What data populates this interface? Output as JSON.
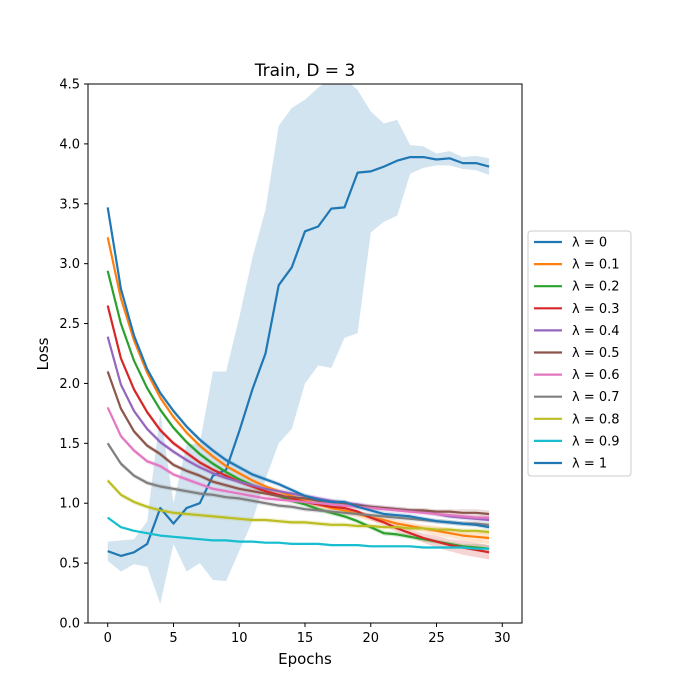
{
  "chart_data": {
    "type": "line",
    "title": "Train, D = 3",
    "xlabel": "Epochs",
    "ylabel": "Loss",
    "xlim": [
      -1.5,
      31.5
    ],
    "ylim": [
      0.0,
      4.5
    ],
    "xticks": [
      0,
      5,
      10,
      15,
      20,
      25,
      30
    ],
    "yticks": [
      0.0,
      0.5,
      1.0,
      1.5,
      2.0,
      2.5,
      3.0,
      3.5,
      4.0,
      4.5
    ],
    "legend_position": "right-center-outside",
    "x": [
      0,
      1,
      2,
      3,
      4,
      5,
      6,
      7,
      8,
      9,
      10,
      11,
      12,
      13,
      14,
      15,
      16,
      17,
      18,
      19,
      20,
      21,
      22,
      23,
      24,
      25,
      26,
      27,
      28,
      29
    ],
    "series": [
      {
        "name": "λ = 0",
        "color": "#1f77b4",
        "values": [
          0.6,
          0.56,
          0.59,
          0.66,
          0.96,
          0.83,
          0.96,
          1.0,
          1.23,
          1.28,
          1.6,
          1.95,
          2.25,
          2.82,
          2.97,
          3.27,
          3.31,
          3.46,
          3.47,
          3.76,
          3.77,
          3.81,
          3.86,
          3.89,
          3.89,
          3.87,
          3.88,
          3.84,
          3.84,
          3.81
        ],
        "band_lower": [
          0.52,
          0.43,
          0.49,
          0.47,
          0.16,
          0.66,
          0.43,
          0.5,
          0.36,
          0.35,
          0.6,
          0.85,
          1.2,
          1.5,
          1.62,
          2.0,
          2.15,
          2.13,
          2.38,
          2.42,
          3.26,
          3.35,
          3.4,
          3.75,
          3.8,
          3.82,
          3.82,
          3.79,
          3.78,
          3.74
        ],
        "band_upper": [
          0.68,
          0.69,
          0.7,
          0.85,
          1.76,
          1.0,
          1.49,
          1.5,
          2.1,
          2.1,
          2.55,
          3.05,
          3.45,
          4.15,
          4.3,
          4.37,
          4.47,
          4.55,
          4.55,
          4.45,
          4.27,
          4.17,
          4.2,
          3.99,
          3.98,
          3.92,
          3.94,
          3.89,
          3.9,
          3.88
        ]
      },
      {
        "name": "λ = 0.1",
        "color": "#ff7f0e",
        "values": [
          3.22,
          2.71,
          2.36,
          2.09,
          1.88,
          1.72,
          1.59,
          1.48,
          1.39,
          1.31,
          1.25,
          1.19,
          1.14,
          1.1,
          1.06,
          1.02,
          0.99,
          0.96,
          0.94,
          0.91,
          0.88,
          0.86,
          0.83,
          0.81,
          0.79,
          0.77,
          0.75,
          0.73,
          0.72,
          0.71
        ],
        "band_lower": [
          3.2,
          2.69,
          2.34,
          2.07,
          1.86,
          1.7,
          1.57,
          1.46,
          1.37,
          1.29,
          1.23,
          1.17,
          1.12,
          1.08,
          1.04,
          1.0,
          0.96,
          0.93,
          0.91,
          0.88,
          0.85,
          0.83,
          0.8,
          0.78,
          0.76,
          0.73,
          0.71,
          0.69,
          0.67,
          0.66
        ],
        "band_upper": [
          3.24,
          2.73,
          2.38,
          2.11,
          1.9,
          1.74,
          1.61,
          1.5,
          1.41,
          1.33,
          1.27,
          1.21,
          1.16,
          1.12,
          1.08,
          1.04,
          1.02,
          0.99,
          0.97,
          0.94,
          0.91,
          0.89,
          0.86,
          0.84,
          0.82,
          0.81,
          0.79,
          0.77,
          0.77,
          0.76
        ]
      },
      {
        "name": "λ = 0.2",
        "color": "#2ca02c",
        "values": [
          2.94,
          2.5,
          2.19,
          1.96,
          1.78,
          1.63,
          1.51,
          1.41,
          1.33,
          1.26,
          1.2,
          1.15,
          1.1,
          1.06,
          1.02,
          0.99,
          0.95,
          0.92,
          0.89,
          0.85,
          0.8,
          0.75,
          0.74,
          0.72,
          0.7,
          0.68,
          0.66,
          0.64,
          0.63,
          0.62
        ],
        "band_lower": [
          2.92,
          2.48,
          2.17,
          1.94,
          1.76,
          1.61,
          1.49,
          1.39,
          1.31,
          1.24,
          1.18,
          1.13,
          1.08,
          1.04,
          1.0,
          0.97,
          0.93,
          0.9,
          0.87,
          0.83,
          0.78,
          0.73,
          0.72,
          0.7,
          0.68,
          0.66,
          0.64,
          0.62,
          0.6,
          0.59
        ],
        "band_upper": [
          2.96,
          2.52,
          2.21,
          1.98,
          1.8,
          1.65,
          1.53,
          1.43,
          1.35,
          1.28,
          1.22,
          1.17,
          1.12,
          1.08,
          1.04,
          1.01,
          0.97,
          0.94,
          0.91,
          0.87,
          0.82,
          0.77,
          0.76,
          0.74,
          0.72,
          0.7,
          0.68,
          0.66,
          0.66,
          0.65
        ]
      },
      {
        "name": "λ = 0.3",
        "color": "#d62728",
        "values": [
          2.65,
          2.21,
          1.95,
          1.76,
          1.61,
          1.5,
          1.42,
          1.34,
          1.28,
          1.23,
          1.18,
          1.14,
          1.1,
          1.07,
          1.04,
          1.01,
          0.99,
          0.97,
          0.96,
          0.93,
          0.88,
          0.84,
          0.79,
          0.75,
          0.71,
          0.68,
          0.65,
          0.63,
          0.61,
          0.59
        ],
        "band_lower": [
          2.63,
          2.19,
          1.93,
          1.74,
          1.59,
          1.48,
          1.4,
          1.32,
          1.26,
          1.21,
          1.16,
          1.12,
          1.08,
          1.05,
          1.02,
          0.99,
          0.97,
          0.95,
          0.94,
          0.91,
          0.86,
          0.81,
          0.76,
          0.72,
          0.67,
          0.63,
          0.6,
          0.57,
          0.55,
          0.53
        ],
        "band_upper": [
          2.67,
          2.23,
          1.97,
          1.78,
          1.63,
          1.52,
          1.44,
          1.36,
          1.3,
          1.25,
          1.2,
          1.16,
          1.12,
          1.09,
          1.06,
          1.03,
          1.01,
          0.99,
          0.98,
          0.95,
          0.9,
          0.87,
          0.82,
          0.78,
          0.75,
          0.73,
          0.7,
          0.69,
          0.67,
          0.65
        ]
      },
      {
        "name": "λ = 0.4",
        "color": "#9467bd",
        "values": [
          2.39,
          1.99,
          1.77,
          1.62,
          1.51,
          1.43,
          1.36,
          1.3,
          1.25,
          1.21,
          1.18,
          1.15,
          1.12,
          1.1,
          1.08,
          1.06,
          1.04,
          1.02,
          1.0,
          0.99,
          0.97,
          0.96,
          0.95,
          0.94,
          0.93,
          0.91,
          0.89,
          0.88,
          0.87,
          0.86
        ],
        "band_lower": [
          2.37,
          1.97,
          1.75,
          1.6,
          1.49,
          1.41,
          1.34,
          1.28,
          1.23,
          1.19,
          1.16,
          1.13,
          1.1,
          1.08,
          1.06,
          1.04,
          1.02,
          1.0,
          0.98,
          0.97,
          0.95,
          0.94,
          0.93,
          0.92,
          0.91,
          0.89,
          0.87,
          0.86,
          0.85,
          0.84
        ],
        "band_upper": [
          2.41,
          2.01,
          1.79,
          1.64,
          1.53,
          1.45,
          1.38,
          1.32,
          1.27,
          1.23,
          1.2,
          1.17,
          1.14,
          1.12,
          1.1,
          1.08,
          1.06,
          1.04,
          1.02,
          1.01,
          0.99,
          0.98,
          0.97,
          0.96,
          0.95,
          0.93,
          0.91,
          0.9,
          0.89,
          0.88
        ]
      },
      {
        "name": "λ = 0.5",
        "color": "#8c564b",
        "values": [
          2.1,
          1.79,
          1.6,
          1.48,
          1.41,
          1.32,
          1.27,
          1.23,
          1.18,
          1.15,
          1.12,
          1.1,
          1.08,
          1.06,
          1.05,
          1.04,
          1.02,
          1.01,
          1.0,
          0.98,
          0.97,
          0.96,
          0.95,
          0.94,
          0.94,
          0.93,
          0.93,
          0.92,
          0.92,
          0.91
        ],
        "band_lower": [
          2.08,
          1.77,
          1.58,
          1.46,
          1.39,
          1.3,
          1.25,
          1.21,
          1.16,
          1.13,
          1.1,
          1.08,
          1.06,
          1.04,
          1.03,
          1.02,
          1.0,
          0.99,
          0.98,
          0.96,
          0.95,
          0.94,
          0.93,
          0.92,
          0.92,
          0.91,
          0.91,
          0.89,
          0.89,
          0.88
        ],
        "band_upper": [
          2.12,
          1.81,
          1.62,
          1.5,
          1.43,
          1.34,
          1.29,
          1.25,
          1.2,
          1.17,
          1.14,
          1.12,
          1.1,
          1.08,
          1.07,
          1.06,
          1.04,
          1.03,
          1.02,
          1.0,
          0.99,
          0.98,
          0.97,
          0.96,
          0.96,
          0.95,
          0.95,
          0.95,
          0.95,
          0.94
        ]
      },
      {
        "name": "λ = 0.6",
        "color": "#e377c2",
        "values": [
          1.8,
          1.56,
          1.44,
          1.35,
          1.31,
          1.24,
          1.2,
          1.16,
          1.12,
          1.1,
          1.08,
          1.06,
          1.04,
          1.03,
          1.02,
          1.01,
          1.0,
          0.99,
          0.98,
          0.97,
          0.96,
          0.95,
          0.94,
          0.93,
          0.92,
          0.91,
          0.9,
          0.89,
          0.88,
          0.88
        ],
        "band_lower": [
          1.78,
          1.54,
          1.42,
          1.33,
          1.29,
          1.22,
          1.18,
          1.14,
          1.1,
          1.08,
          1.06,
          1.04,
          1.02,
          1.01,
          1.0,
          0.99,
          0.98,
          0.97,
          0.96,
          0.95,
          0.94,
          0.93,
          0.92,
          0.91,
          0.9,
          0.89,
          0.88,
          0.87,
          0.86,
          0.86
        ],
        "band_upper": [
          1.82,
          1.58,
          1.46,
          1.37,
          1.33,
          1.26,
          1.22,
          1.18,
          1.14,
          1.12,
          1.1,
          1.08,
          1.06,
          1.05,
          1.04,
          1.03,
          1.02,
          1.01,
          1.0,
          0.99,
          0.98,
          0.97,
          0.96,
          0.95,
          0.94,
          0.93,
          0.92,
          0.91,
          0.9,
          0.9
        ]
      },
      {
        "name": "λ = 0.7",
        "color": "#7f7f7f",
        "values": [
          1.5,
          1.33,
          1.23,
          1.17,
          1.14,
          1.12,
          1.1,
          1.08,
          1.07,
          1.05,
          1.04,
          1.02,
          1.0,
          0.98,
          0.97,
          0.95,
          0.94,
          0.93,
          0.92,
          0.91,
          0.9,
          0.89,
          0.88,
          0.87,
          0.86,
          0.85,
          0.84,
          0.83,
          0.83,
          0.82
        ],
        "band_lower": [
          1.48,
          1.31,
          1.21,
          1.15,
          1.12,
          1.1,
          1.08,
          1.06,
          1.05,
          1.03,
          1.02,
          1.0,
          0.98,
          0.96,
          0.95,
          0.93,
          0.92,
          0.91,
          0.9,
          0.89,
          0.88,
          0.87,
          0.86,
          0.85,
          0.84,
          0.83,
          0.82,
          0.81,
          0.81,
          0.8
        ],
        "band_upper": [
          1.52,
          1.35,
          1.25,
          1.19,
          1.16,
          1.14,
          1.12,
          1.1,
          1.09,
          1.07,
          1.06,
          1.04,
          1.02,
          1.0,
          0.99,
          0.97,
          0.96,
          0.95,
          0.94,
          0.93,
          0.92,
          0.91,
          0.9,
          0.89,
          0.88,
          0.87,
          0.86,
          0.85,
          0.85,
          0.84
        ]
      },
      {
        "name": "λ = 0.8",
        "color": "#bcbd22",
        "values": [
          1.19,
          1.07,
          1.01,
          0.97,
          0.94,
          0.92,
          0.91,
          0.9,
          0.89,
          0.88,
          0.87,
          0.86,
          0.86,
          0.85,
          0.84,
          0.84,
          0.83,
          0.82,
          0.82,
          0.81,
          0.81,
          0.8,
          0.8,
          0.79,
          0.79,
          0.78,
          0.78,
          0.77,
          0.77,
          0.76
        ],
        "band_lower": [
          1.17,
          1.05,
          0.99,
          0.95,
          0.92,
          0.9,
          0.89,
          0.88,
          0.87,
          0.86,
          0.85,
          0.84,
          0.84,
          0.83,
          0.82,
          0.82,
          0.81,
          0.8,
          0.8,
          0.79,
          0.79,
          0.78,
          0.78,
          0.77,
          0.77,
          0.76,
          0.76,
          0.75,
          0.75,
          0.74
        ],
        "band_upper": [
          1.21,
          1.09,
          1.03,
          0.99,
          0.96,
          0.94,
          0.93,
          0.92,
          0.91,
          0.9,
          0.89,
          0.88,
          0.88,
          0.87,
          0.86,
          0.86,
          0.85,
          0.84,
          0.84,
          0.83,
          0.83,
          0.82,
          0.82,
          0.81,
          0.81,
          0.8,
          0.8,
          0.79,
          0.79,
          0.78
        ]
      },
      {
        "name": "λ = 0.9",
        "color": "#17becf",
        "values": [
          0.88,
          0.8,
          0.77,
          0.75,
          0.73,
          0.72,
          0.71,
          0.7,
          0.69,
          0.69,
          0.68,
          0.68,
          0.67,
          0.67,
          0.66,
          0.66,
          0.66,
          0.65,
          0.65,
          0.65,
          0.64,
          0.64,
          0.64,
          0.64,
          0.63,
          0.63,
          0.63,
          0.63,
          0.62,
          0.62
        ],
        "band_lower": [
          0.87,
          0.79,
          0.76,
          0.74,
          0.72,
          0.71,
          0.7,
          0.69,
          0.68,
          0.68,
          0.67,
          0.67,
          0.66,
          0.66,
          0.65,
          0.65,
          0.65,
          0.64,
          0.64,
          0.64,
          0.63,
          0.63,
          0.63,
          0.63,
          0.62,
          0.62,
          0.62,
          0.62,
          0.61,
          0.61
        ],
        "band_upper": [
          0.89,
          0.81,
          0.78,
          0.76,
          0.74,
          0.73,
          0.72,
          0.71,
          0.7,
          0.7,
          0.69,
          0.69,
          0.68,
          0.68,
          0.67,
          0.67,
          0.67,
          0.66,
          0.66,
          0.66,
          0.65,
          0.65,
          0.65,
          0.65,
          0.64,
          0.64,
          0.64,
          0.64,
          0.63,
          0.63
        ]
      },
      {
        "name": "λ = 1",
        "color": "#1f77b4",
        "values": [
          3.47,
          2.79,
          2.4,
          2.12,
          1.92,
          1.77,
          1.64,
          1.53,
          1.44,
          1.36,
          1.3,
          1.24,
          1.2,
          1.16,
          1.11,
          1.06,
          1.03,
          1.01,
          1.01,
          0.97,
          0.94,
          0.91,
          0.9,
          0.89,
          0.87,
          0.85,
          0.84,
          0.83,
          0.82,
          0.8
        ],
        "band_lower": [
          3.45,
          2.77,
          2.38,
          2.1,
          1.9,
          1.75,
          1.62,
          1.51,
          1.42,
          1.34,
          1.28,
          1.22,
          1.18,
          1.14,
          1.09,
          1.04,
          1.01,
          0.99,
          0.99,
          0.95,
          0.92,
          0.89,
          0.88,
          0.87,
          0.85,
          0.83,
          0.82,
          0.81,
          0.8,
          0.78
        ],
        "band_upper": [
          3.49,
          2.81,
          2.42,
          2.14,
          1.94,
          1.79,
          1.66,
          1.55,
          1.46,
          1.38,
          1.32,
          1.26,
          1.22,
          1.18,
          1.13,
          1.08,
          1.05,
          1.03,
          1.03,
          0.99,
          0.96,
          0.93,
          0.92,
          0.91,
          0.89,
          0.87,
          0.86,
          0.85,
          0.84,
          0.82
        ]
      }
    ]
  }
}
